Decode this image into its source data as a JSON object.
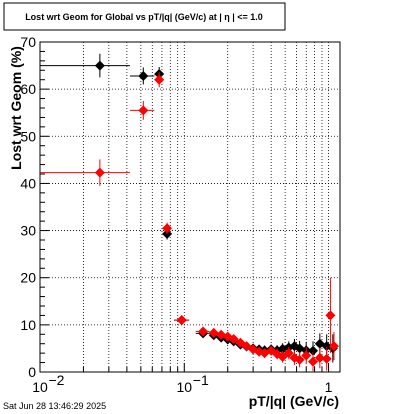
{
  "canvas_stamp": "Sat Jun 28 13:46:29 2025",
  "chart_data": {
    "type": "scatter",
    "title": "Lost wrt Geom for Global vs pT/|q| (GeV/c) at |  η  | <= 1.0",
    "xlabel": "pT/|q| (GeV/c)",
    "ylabel": "Lost wrt Geom (%)",
    "x_scale": "log",
    "xlim": [
      0.01,
      1.2
    ],
    "ylim": [
      0,
      70
    ],
    "grid": true,
    "y_ticks": [
      "0",
      "10",
      "20",
      "30",
      "40",
      "50",
      "60",
      "70"
    ],
    "x_ticks": [
      {
        "base": "10",
        "exp": "−2",
        "value": 0.01
      },
      {
        "base": "10",
        "exp": "−1",
        "value": 0.1
      },
      {
        "base": "1",
        "exp": "",
        "value": 1
      }
    ],
    "series": [
      {
        "color": "#000000",
        "points": [
          {
            "x": 0.026,
            "y": 65.0,
            "xlo": 0.01,
            "xhi": 0.042,
            "ey": 2.5
          },
          {
            "x": 0.052,
            "y": 62.8,
            "xlo": 0.042,
            "xhi": 0.062,
            "ey": 1.8
          },
          {
            "x": 0.067,
            "y": 63.2,
            "xlo": 0.062,
            "xhi": 0.072,
            "ey": 1.5
          },
          {
            "x": 0.076,
            "y": 29.3,
            "xlo": 0.072,
            "xhi": 0.081,
            "ey": 1.2
          },
          {
            "x": 0.096,
            "y": 11.0,
            "xlo": 0.085,
            "xhi": 0.108,
            "ey": 0.6
          },
          {
            "x": 0.135,
            "y": 8.2,
            "xlo": 0.12,
            "xhi": 0.15,
            "ey": 0.6
          },
          {
            "x": 0.16,
            "y": 7.8,
            "xlo": 0.15,
            "xhi": 0.17,
            "ey": 0.6
          },
          {
            "x": 0.18,
            "y": 7.3,
            "xlo": 0.17,
            "xhi": 0.19,
            "ey": 0.6
          },
          {
            "x": 0.2,
            "y": 6.9,
            "xlo": 0.19,
            "xhi": 0.21,
            "ey": 0.7
          },
          {
            "x": 0.22,
            "y": 6.5,
            "xlo": 0.21,
            "xhi": 0.23,
            "ey": 0.7
          },
          {
            "x": 0.245,
            "y": 5.8,
            "xlo": 0.23,
            "xhi": 0.26,
            "ey": 0.8
          },
          {
            "x": 0.27,
            "y": 5.4,
            "xlo": 0.26,
            "xhi": 0.28,
            "ey": 0.8
          },
          {
            "x": 0.3,
            "y": 5.0,
            "xlo": 0.285,
            "xhi": 0.315,
            "ey": 0.9
          },
          {
            "x": 0.33,
            "y": 4.8,
            "xlo": 0.315,
            "xhi": 0.345,
            "ey": 0.9
          },
          {
            "x": 0.36,
            "y": 4.6,
            "xlo": 0.345,
            "xhi": 0.375,
            "ey": 1.0
          },
          {
            "x": 0.4,
            "y": 4.8,
            "xlo": 0.38,
            "xhi": 0.42,
            "ey": 1.0
          },
          {
            "x": 0.44,
            "y": 4.6,
            "xlo": 0.42,
            "xhi": 0.46,
            "ey": 1.1
          },
          {
            "x": 0.48,
            "y": 4.9,
            "xlo": 0.46,
            "xhi": 0.5,
            "ey": 1.2
          },
          {
            "x": 0.53,
            "y": 5.2,
            "xlo": 0.5,
            "xhi": 0.56,
            "ey": 1.3
          },
          {
            "x": 0.58,
            "y": 5.5,
            "xlo": 0.56,
            "xhi": 0.6,
            "ey": 1.5
          },
          {
            "x": 0.63,
            "y": 5.0,
            "xlo": 0.6,
            "xhi": 0.66,
            "ey": 1.6
          },
          {
            "x": 0.7,
            "y": 4.6,
            "xlo": 0.66,
            "xhi": 0.74,
            "ey": 1.8
          },
          {
            "x": 0.78,
            "y": 4.5,
            "xlo": 0.74,
            "xhi": 0.82,
            "ey": 2.0
          },
          {
            "x": 0.87,
            "y": 6.0,
            "xlo": 0.82,
            "xhi": 0.92,
            "ey": 2.2
          },
          {
            "x": 0.97,
            "y": 5.5,
            "xlo": 0.92,
            "xhi": 1.02,
            "ey": 2.5
          },
          {
            "x": 1.07,
            "y": 5.0,
            "xlo": 1.02,
            "xhi": 1.12,
            "ey": 3.0
          }
        ]
      },
      {
        "color": "#ff0000",
        "points": [
          {
            "x": 0.026,
            "y": 42.3,
            "xlo": 0.01,
            "xhi": 0.042,
            "ey": 2.8
          },
          {
            "x": 0.052,
            "y": 55.5,
            "xlo": 0.042,
            "xhi": 0.062,
            "ey": 2.0
          },
          {
            "x": 0.067,
            "y": 62.0,
            "xlo": 0.062,
            "xhi": 0.072,
            "ey": 1.6
          },
          {
            "x": 0.076,
            "y": 30.5,
            "xlo": 0.072,
            "xhi": 0.081,
            "ey": 1.2
          },
          {
            "x": 0.096,
            "y": 11.0,
            "xlo": 0.085,
            "xhi": 0.108,
            "ey": 0.6
          },
          {
            "x": 0.135,
            "y": 8.6,
            "xlo": 0.12,
            "xhi": 0.15,
            "ey": 0.6
          },
          {
            "x": 0.16,
            "y": 8.3,
            "xlo": 0.15,
            "xhi": 0.17,
            "ey": 0.6
          },
          {
            "x": 0.18,
            "y": 7.9,
            "xlo": 0.17,
            "xhi": 0.19,
            "ey": 0.6
          },
          {
            "x": 0.2,
            "y": 7.5,
            "xlo": 0.19,
            "xhi": 0.21,
            "ey": 0.7
          },
          {
            "x": 0.22,
            "y": 7.0,
            "xlo": 0.21,
            "xhi": 0.23,
            "ey": 0.7
          },
          {
            "x": 0.245,
            "y": 6.2,
            "xlo": 0.23,
            "xhi": 0.26,
            "ey": 0.8
          },
          {
            "x": 0.27,
            "y": 5.5,
            "xlo": 0.26,
            "xhi": 0.28,
            "ey": 0.8
          },
          {
            "x": 0.3,
            "y": 4.8,
            "xlo": 0.285,
            "xhi": 0.315,
            "ey": 0.9
          },
          {
            "x": 0.33,
            "y": 4.3,
            "xlo": 0.315,
            "xhi": 0.345,
            "ey": 0.9
          },
          {
            "x": 0.36,
            "y": 4.0,
            "xlo": 0.345,
            "xhi": 0.375,
            "ey": 1.0
          },
          {
            "x": 0.4,
            "y": 4.5,
            "xlo": 0.38,
            "xhi": 0.42,
            "ey": 1.0
          },
          {
            "x": 0.44,
            "y": 3.8,
            "xlo": 0.42,
            "xhi": 0.46,
            "ey": 1.1
          },
          {
            "x": 0.48,
            "y": 3.2,
            "xlo": 0.46,
            "xhi": 0.5,
            "ey": 1.2
          },
          {
            "x": 0.53,
            "y": 4.0,
            "xlo": 0.5,
            "xhi": 0.56,
            "ey": 1.3
          },
          {
            "x": 0.58,
            "y": 3.0,
            "xlo": 0.56,
            "xhi": 0.6,
            "ey": 1.5
          },
          {
            "x": 0.63,
            "y": 2.6,
            "xlo": 0.6,
            "xhi": 0.66,
            "ey": 1.6
          },
          {
            "x": 0.7,
            "y": 3.5,
            "xlo": 0.66,
            "xhi": 0.74,
            "ey": 1.8
          },
          {
            "x": 0.78,
            "y": 2.2,
            "xlo": 0.74,
            "xhi": 0.82,
            "ey": 2.0
          },
          {
            "x": 0.87,
            "y": 3.0,
            "xlo": 0.82,
            "xhi": 0.92,
            "ey": 2.2
          },
          {
            "x": 0.97,
            "y": 2.8,
            "xlo": 0.92,
            "xhi": 1.02,
            "ey": 2.5
          },
          {
            "x": 1.03,
            "y": 12.0,
            "xlo": 1.0,
            "xhi": 1.06,
            "ey": 8.0
          },
          {
            "x": 1.09,
            "y": 5.5,
            "xlo": 1.06,
            "xhi": 1.12,
            "ey": 3.0
          }
        ]
      }
    ]
  }
}
